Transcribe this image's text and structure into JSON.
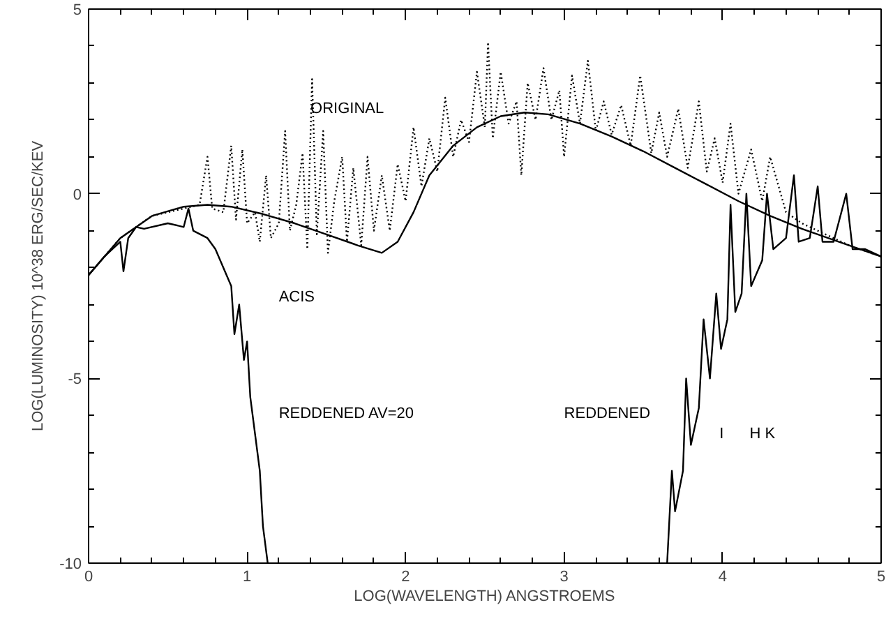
{
  "chart_data": {
    "type": "line",
    "xlabel": "LOG(WAVELENGTH) ANGSTROEMS",
    "ylabel": "LOG(LUMINOSITY) 10^38 ERG/SEC/KEV",
    "xlim": [
      0,
      5
    ],
    "ylim": [
      -10,
      5
    ],
    "xticks": [
      0,
      1,
      2,
      3,
      4,
      5
    ],
    "yticks": [
      -10,
      -5,
      0,
      5
    ],
    "grid": false,
    "marker": "none",
    "series": [
      {
        "color": "#000000",
        "line_style": "dotted",
        "x": [
          0,
          0.2,
          0.4,
          0.6,
          0.7,
          0.75,
          0.78,
          0.85,
          0.9,
          0.93,
          0.97,
          1.0,
          1.05,
          1.08,
          1.12,
          1.15,
          1.2,
          1.24,
          1.27,
          1.31,
          1.35,
          1.38,
          1.41,
          1.44,
          1.48,
          1.51,
          1.55,
          1.6,
          1.63,
          1.67,
          1.72,
          1.76,
          1.8,
          1.85,
          1.9,
          1.95,
          2.0,
          2.05,
          2.1,
          2.15,
          2.2,
          2.25,
          2.3,
          2.35,
          2.4,
          2.45,
          2.5,
          2.52,
          2.55,
          2.6,
          2.65,
          2.7,
          2.73,
          2.77,
          2.82,
          2.87,
          2.92,
          2.97,
          3.0,
          3.05,
          3.1,
          3.15,
          3.2,
          3.25,
          3.3,
          3.36,
          3.42,
          3.48,
          3.55,
          3.6,
          3.65,
          3.72,
          3.78,
          3.85,
          3.9,
          3.95,
          4.0,
          4.05,
          4.1,
          4.18,
          4.25,
          4.3,
          4.4,
          4.5,
          4.6,
          4.7,
          4.8,
          5.0
        ],
        "values": [
          -2.2,
          -1.2,
          -0.6,
          -0.4,
          -0.3,
          1.0,
          -0.4,
          -0.5,
          1.3,
          -0.7,
          1.2,
          -0.8,
          -0.5,
          -1.3,
          0.5,
          -1.2,
          -0.8,
          1.7,
          -1.0,
          -0.3,
          1.1,
          -1.5,
          3.1,
          -1.1,
          1.7,
          -1.6,
          -0.2,
          1.0,
          -1.3,
          0.7,
          -1.4,
          1.0,
          -1.0,
          0.5,
          -1.0,
          0.8,
          -0.2,
          1.8,
          0.2,
          1.5,
          0.6,
          2.6,
          1.0,
          2.0,
          1.4,
          3.3,
          1.8,
          4.1,
          1.5,
          3.3,
          1.9,
          2.5,
          0.5,
          3.0,
          2.0,
          3.4,
          2.0,
          2.8,
          1.0,
          3.2,
          1.9,
          3.6,
          1.7,
          2.5,
          1.6,
          2.4,
          1.3,
          3.2,
          1.1,
          2.2,
          1.0,
          2.3,
          0.7,
          2.5,
          0.6,
          1.5,
          0.3,
          1.9,
          0.0,
          1.2,
          -0.2,
          1.0,
          -0.5,
          -0.8,
          -1.0,
          -1.2,
          -1.4,
          -1.7
        ]
      },
      {
        "color": "#000000",
        "line_style": "solid",
        "x": [
          0,
          0.2,
          0.4,
          0.6,
          0.75,
          0.9,
          1.1,
          1.3,
          1.5,
          1.7,
          1.85,
          1.95,
          2.05,
          2.15,
          2.3,
          2.45,
          2.6,
          2.75,
          2.9,
          3.1,
          3.3,
          3.5,
          3.7,
          3.9,
          4.1,
          4.3,
          4.5,
          4.7,
          5.0
        ],
        "values": [
          -2.2,
          -1.2,
          -0.6,
          -0.35,
          -0.3,
          -0.35,
          -0.55,
          -0.8,
          -1.1,
          -1.4,
          -1.6,
          -1.3,
          -0.5,
          0.5,
          1.3,
          1.8,
          2.1,
          2.2,
          2.15,
          1.9,
          1.55,
          1.15,
          0.7,
          0.25,
          -0.2,
          -0.6,
          -0.95,
          -1.25,
          -1.7
        ]
      },
      {
        "color": "#000000",
        "line_style": "solid",
        "x": [
          0,
          0.1,
          0.2,
          0.22,
          0.25,
          0.3,
          0.35,
          0.5,
          0.6,
          0.63,
          0.66,
          0.75,
          0.8,
          0.85,
          0.9,
          0.92,
          0.95,
          0.98,
          1.0,
          1.02,
          1.05,
          1.08,
          1.1,
          1.13
        ],
        "values": [
          -2.2,
          -1.7,
          -1.3,
          -2.1,
          -1.2,
          -0.9,
          -0.95,
          -0.8,
          -0.9,
          -0.4,
          -1.0,
          -1.2,
          -1.5,
          -2.0,
          -2.5,
          -3.8,
          -3.0,
          -4.5,
          -4.0,
          -5.5,
          -6.5,
          -7.5,
          -9.0,
          -10
        ]
      },
      {
        "color": "#000000",
        "line_style": "solid",
        "x": [
          3.65,
          3.68,
          3.7,
          3.75,
          3.77,
          3.8,
          3.85,
          3.88,
          3.92,
          3.96,
          3.99,
          4.03,
          4.05,
          4.08,
          4.12,
          4.15,
          4.18,
          4.25,
          4.28,
          4.32,
          4.4,
          4.45,
          4.48,
          4.55,
          4.6,
          4.63,
          4.7,
          4.78,
          4.82,
          4.9,
          5.0
        ],
        "values": [
          -10,
          -7.5,
          -8.6,
          -7.5,
          -5.0,
          -6.8,
          -5.8,
          -3.4,
          -5.0,
          -2.7,
          -4.2,
          -3.4,
          -0.3,
          -3.2,
          -2.7,
          0.0,
          -2.5,
          -1.8,
          0.0,
          -1.5,
          -1.2,
          0.5,
          -1.3,
          -1.2,
          0.2,
          -1.3,
          -1.3,
          0.0,
          -1.5,
          -1.5,
          -1.7
        ]
      }
    ],
    "annotations": [
      "ORIGINAL",
      "ACIS",
      "REDDENED AV=20",
      "REDDENED",
      "I",
      "H K"
    ]
  }
}
